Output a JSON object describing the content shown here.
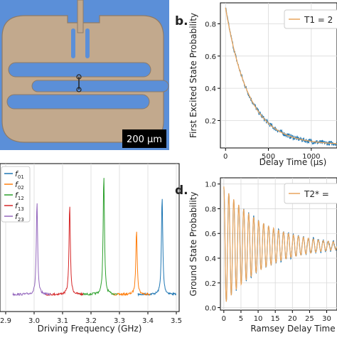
{
  "figure": {
    "panel_labels": {
      "b": "b.",
      "d": "d."
    },
    "micrograph": {
      "scale_bar": "200 μm"
    }
  },
  "chart_data": [
    {
      "id": "c",
      "type": "line",
      "xlabel": "Driving Frequency (GHz)",
      "xticks": [
        "2.9",
        "3.0",
        "3.1",
        "3.2",
        "3.3",
        "3.4",
        "3.5"
      ],
      "xlim": [
        2.88,
        3.51
      ],
      "legend": [
        "f01",
        "f02",
        "f12",
        "f13",
        "f23"
      ],
      "legend_placement": "top-left",
      "series": [
        {
          "name": "f01",
          "color": "#1f77b4",
          "peak_x": 3.45,
          "peak_height": 0.82
        },
        {
          "name": "f02",
          "color": "#ff7f0e",
          "peak_x": 3.36,
          "peak_height": 0.55
        },
        {
          "name": "f12",
          "color": "#2ca02c",
          "peak_x": 3.245,
          "peak_height": 1.0
        },
        {
          "name": "f13",
          "color": "#d62728",
          "peak_x": 3.125,
          "peak_height": 0.75
        },
        {
          "name": "f23",
          "color": "#9467bd",
          "peak_x": 3.01,
          "peak_height": 0.78
        }
      ]
    },
    {
      "id": "b",
      "type": "line",
      "ylabel": "First Excited State Probability",
      "xlabel": "Delay Time (μs)",
      "xticks": [
        "0",
        "500",
        "1000"
      ],
      "yticks": [
        "0.2",
        "0.4",
        "0.6",
        "0.8"
      ],
      "xlim": [
        -60,
        1300
      ],
      "ylim": [
        0.03,
        0.93
      ],
      "legend_text": "T1 = 2",
      "legend_placement": "top-right",
      "data_color": "#1f77b4",
      "fit_color": "#e8a45c",
      "decay": {
        "amplitude": 0.85,
        "offset": 0.05,
        "tau": 270
      }
    },
    {
      "id": "d",
      "type": "line",
      "ylabel": "Ground State Probability",
      "xlabel": "Ramsey Delay Time",
      "xticks": [
        "0",
        "5",
        "10",
        "15",
        "20",
        "25",
        "30"
      ],
      "yticks": [
        "0.0",
        "0.2",
        "0.4",
        "0.6",
        "0.8",
        "1.0"
      ],
      "xlim": [
        -1,
        33
      ],
      "ylim": [
        -0.02,
        1.05
      ],
      "legend_text": "T2* =",
      "legend_placement": "top-right",
      "data_color": "#1f77b4",
      "fit_color": "#e8a45c",
      "oscillation": {
        "period": 1.45,
        "mean": 0.5,
        "amplitude": 0.48,
        "tau": 12
      }
    }
  ]
}
